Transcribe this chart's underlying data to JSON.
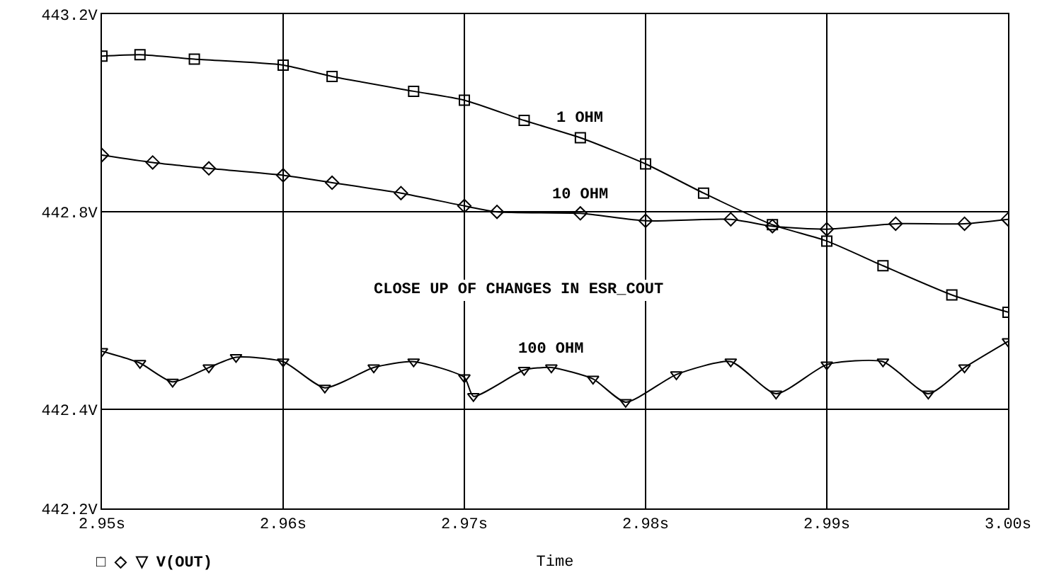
{
  "chart_data": {
    "type": "line",
    "xlabel": "Time",
    "xlim": [
      2.95,
      3.0
    ],
    "xticks": [
      {
        "value": 2.95,
        "label": "2.95s"
      },
      {
        "value": 2.96,
        "label": "2.96s"
      },
      {
        "value": 2.97,
        "label": "2.97s"
      },
      {
        "value": 2.98,
        "label": "2.98s"
      },
      {
        "value": 2.99,
        "label": "2.99s"
      },
      {
        "value": 3.0,
        "label": "3.00s"
      }
    ],
    "ylim": [
      442.2,
      443.2
    ],
    "yticks": [
      {
        "value": 442.2,
        "label": "442.2V"
      },
      {
        "value": 442.4,
        "label": "442.4V"
      },
      {
        "value": 442.8,
        "label": "442.8V"
      },
      {
        "value": 443.2,
        "label": "443.2V"
      }
    ],
    "grid": true,
    "legend": false,
    "series": [
      {
        "name": "1 OHM",
        "color": "#000000",
        "marker": "square",
        "x": [
          2.95,
          2.9521,
          2.9551,
          2.96,
          2.9627,
          2.9672,
          2.97,
          2.9733,
          2.9764,
          2.98,
          2.9832,
          2.987,
          2.99,
          2.9931,
          2.9969,
          3.0
        ],
        "values": [
          443.115,
          443.118,
          443.109,
          443.097,
          443.074,
          443.044,
          443.026,
          442.985,
          442.95,
          442.897,
          442.838,
          442.774,
          442.741,
          442.691,
          442.632,
          442.597
        ]
      },
      {
        "name": "10 OHM",
        "color": "#000000",
        "marker": "diamond",
        "x": [
          2.95,
          2.9528,
          2.9559,
          2.96,
          2.9627,
          2.9665,
          2.97,
          2.9718,
          2.9764,
          2.98,
          2.9847,
          2.987,
          2.99,
          2.9938,
          2.9976,
          3.0
        ],
        "values": [
          442.915,
          442.9,
          442.888,
          442.874,
          442.859,
          442.838,
          442.812,
          442.8,
          442.797,
          442.782,
          442.785,
          442.771,
          442.765,
          442.776,
          442.776,
          442.785
        ]
      },
      {
        "name": "100 OHM",
        "color": "#000000",
        "marker": "triangle",
        "x": [
          2.95,
          2.9521,
          2.9539,
          2.9559,
          2.9574,
          2.96,
          2.9623,
          2.965,
          2.9672,
          2.97,
          2.9705,
          2.9733,
          2.9748,
          2.9771,
          2.9789,
          2.9817,
          2.9847,
          2.9872,
          2.99,
          2.9931,
          2.9956,
          2.9976,
          3.0
        ],
        "values": [
          442.518,
          442.494,
          442.456,
          442.485,
          442.506,
          442.497,
          442.444,
          442.485,
          442.497,
          442.465,
          442.427,
          442.48,
          442.485,
          442.462,
          442.415,
          442.471,
          442.497,
          442.432,
          442.491,
          442.497,
          442.432,
          442.485,
          442.538
        ]
      }
    ],
    "annotations": [
      "CLOSE UP OF CHANGES IN ESR_COUT",
      "□ ◇ ▽ V(OUT)"
    ]
  }
}
